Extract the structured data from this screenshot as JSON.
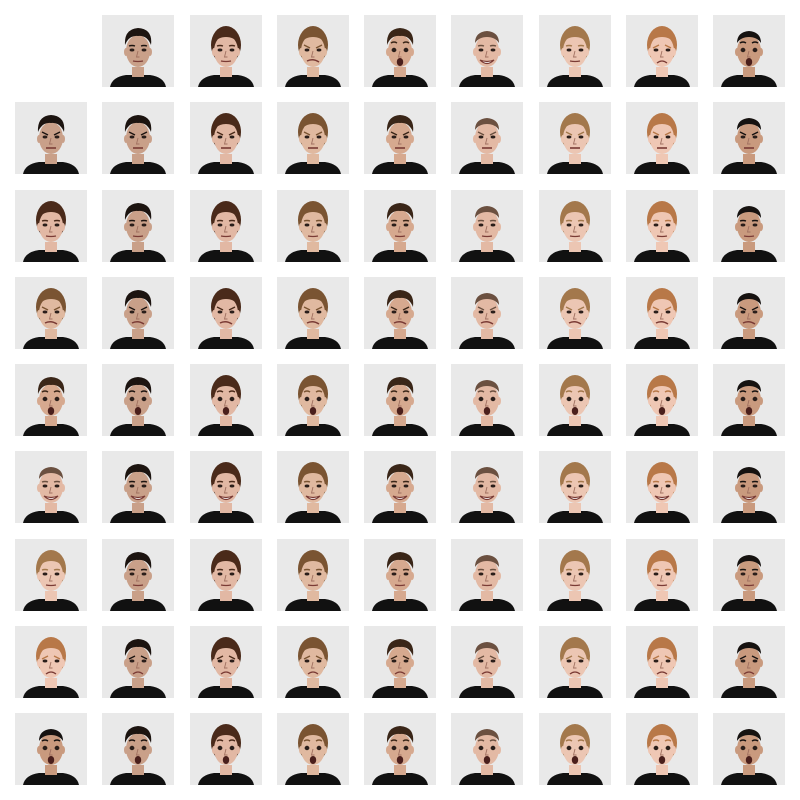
{
  "grid": {
    "rows": 9,
    "cols": 9,
    "empty_cell": {
      "row": 0,
      "col": 0
    },
    "background": "#ffffff",
    "photo_background": "#e9e9e9",
    "shirt_color": "#111111"
  },
  "identities": [
    {
      "id": "A",
      "hair": "#1c1410",
      "skin": "#c9a089",
      "hair_style": "short-dark-thick"
    },
    {
      "id": "B",
      "hair": "#4a2a1a",
      "skin": "#e2b8a4",
      "hair_style": "pulled-back"
    },
    {
      "id": "C",
      "hair": "#7a5432",
      "skin": "#e0b9a0",
      "hair_style": "pulled-back"
    },
    {
      "id": "D",
      "hair": "#3a2618",
      "skin": "#d6a98f",
      "hair_style": "short-curly"
    },
    {
      "id": "E",
      "hair": "#6b5040",
      "skin": "#e3b9a4",
      "hair_style": "very-short"
    },
    {
      "id": "F",
      "hair": "#a3784c",
      "skin": "#ecc6b3",
      "hair_style": "pulled-back-light"
    },
    {
      "id": "G",
      "hair": "#b87848",
      "skin": "#efc7b4",
      "hair_style": "pulled-back-ginger"
    },
    {
      "id": "H",
      "hair": "#161210",
      "skin": "#c99a7e",
      "hair_style": "short-dark"
    }
  ],
  "expressions": [
    "neutral",
    "angry",
    "neutral",
    "disgust",
    "surprise",
    "happy",
    "neutral",
    "sad",
    "surprise"
  ],
  "row_identities": [
    "A",
    "B",
    "C",
    "D",
    "E",
    "F",
    "G",
    "H"
  ],
  "col_identities": [
    "A",
    "B",
    "C",
    "D",
    "E",
    "F",
    "G",
    "H"
  ],
  "row_expressions": [
    "angry",
    "neutral",
    "disgust",
    "surprise",
    "happy",
    "neutral",
    "sad",
    "surprise"
  ],
  "col_expressions": [
    "neutral",
    "neutral",
    "disgust",
    "surprise",
    "happy",
    "neutral",
    "sad",
    "surprise"
  ]
}
